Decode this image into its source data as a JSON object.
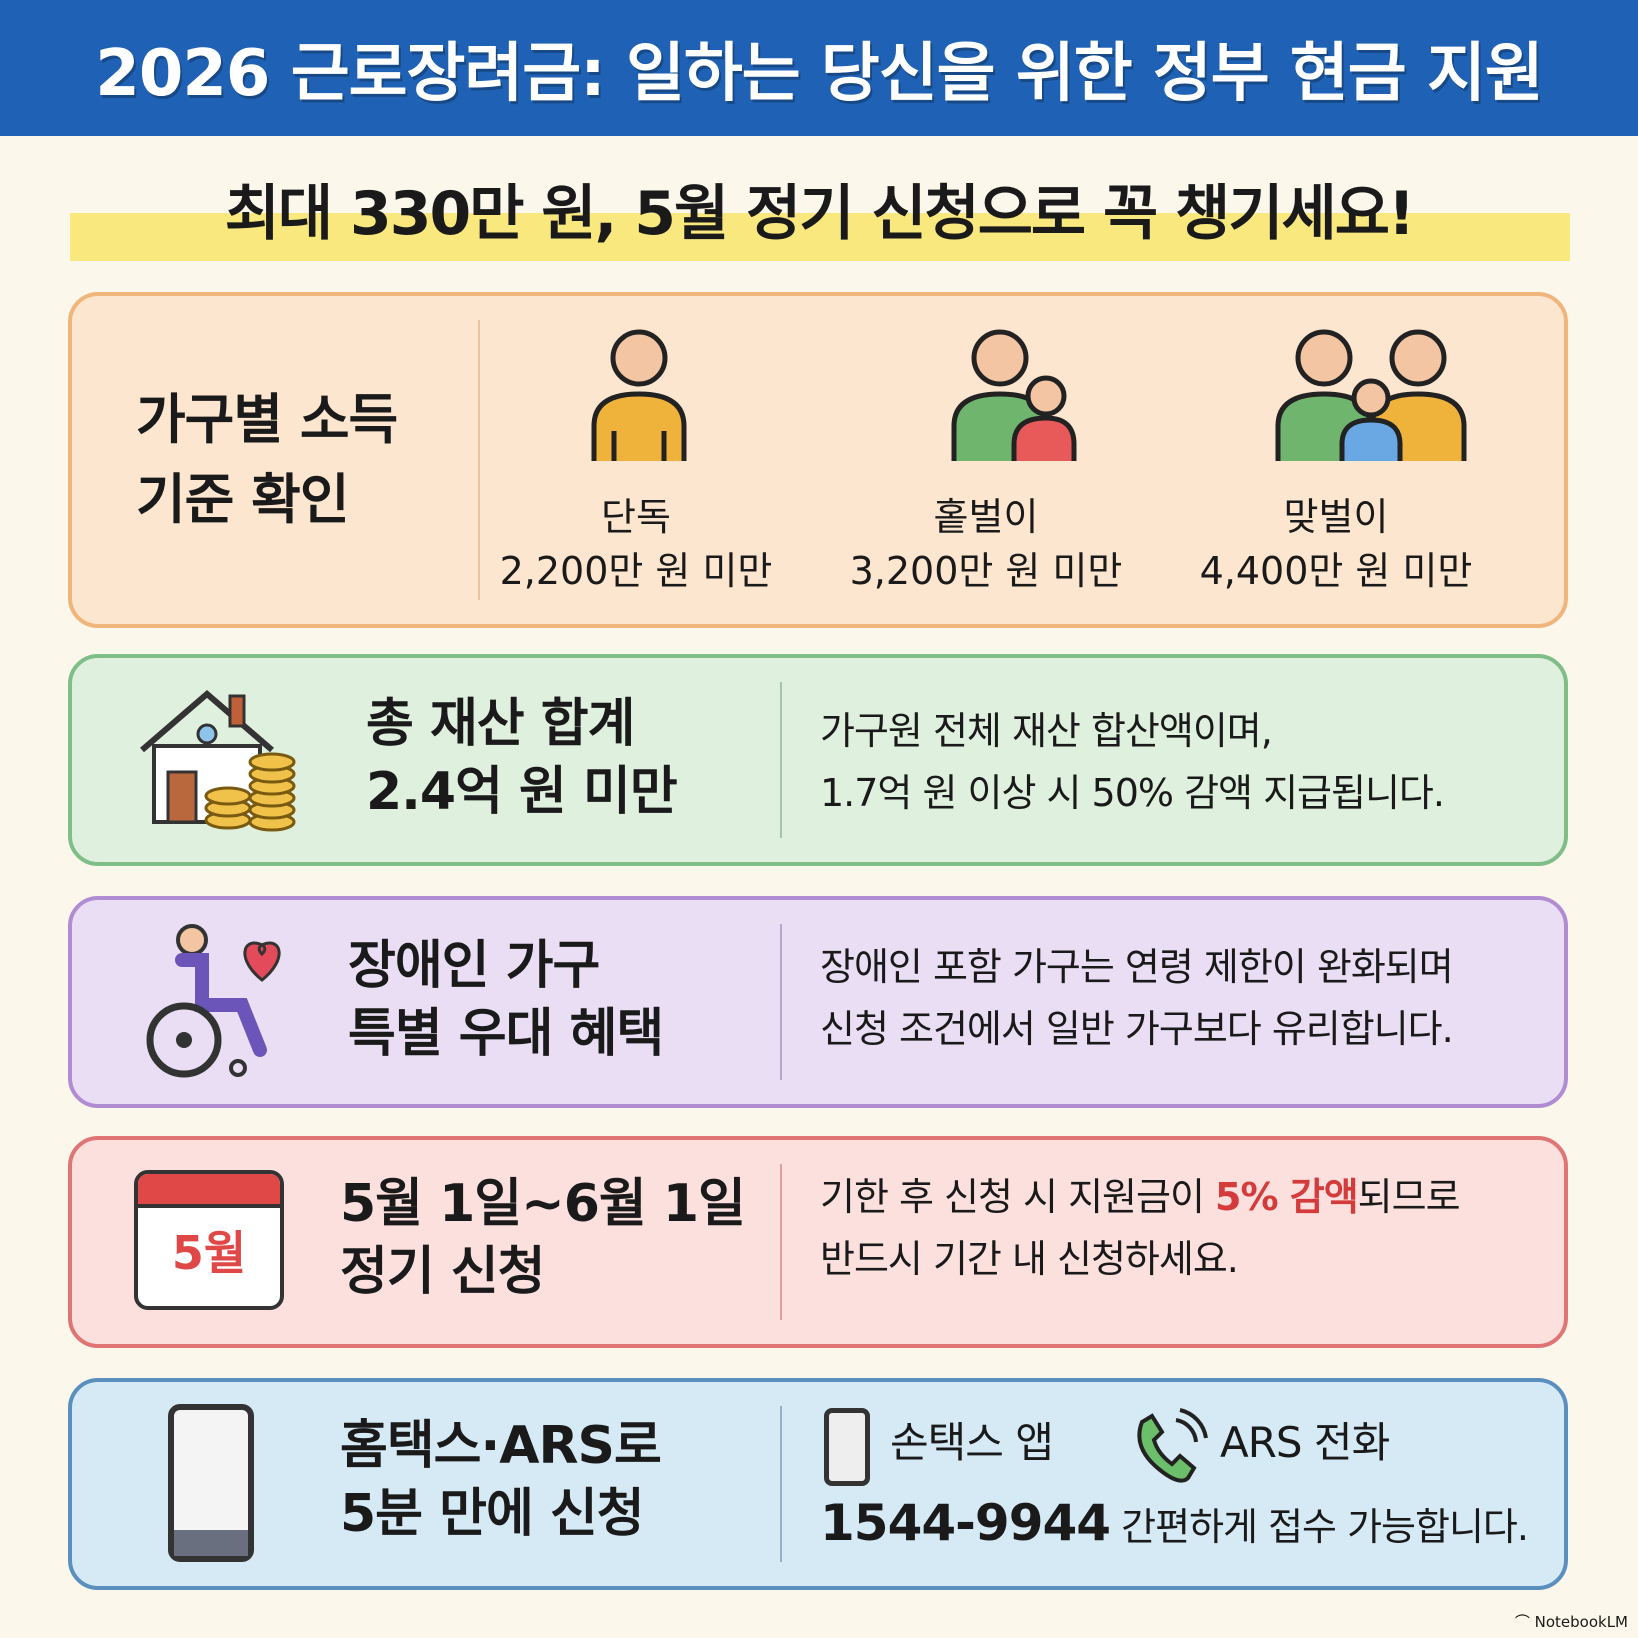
{
  "header": {
    "title": "2026 근로장려금: 일하는 당신을 위한 정부 현금 지원"
  },
  "subtitle": "최대 330만 원, 5월 정기 신청으로 꼭 챙기세요!",
  "income": {
    "title_1": "가구별 소득",
    "title_2": "기준 확인",
    "types": [
      {
        "label": "단독",
        "limit": "2,200만 원 미만",
        "icon": "single-person-icon"
      },
      {
        "label": "홑벌이",
        "limit": "3,200만 원 미만",
        "icon": "parent-child-icon"
      },
      {
        "label": "맞벌이",
        "limit": "4,400만 원 미만",
        "icon": "family-icon"
      }
    ]
  },
  "assets": {
    "title_1": "총 재산 합계",
    "title_2": "2.4억 원 미만",
    "desc_1": "가구원 전체 재산 합산액이며,",
    "desc_2": "1.7억 원 이상 시 50% 감액 지급됩니다.",
    "icon": "house-coins-icon"
  },
  "disabled": {
    "title_1": "장애인 가구",
    "title_2": "특별 우대 혜택",
    "desc_1": "장애인 포함 가구는 연령 제한이 완화되며",
    "desc_2": "신청 조건에서 일반 가구보다 유리합니다.",
    "icon": "wheelchair-heart-icon"
  },
  "period": {
    "title_1": "5월 1일~6월 1일",
    "title_2": "정기 신청",
    "desc_1a": "기한 후 신청 시 지원금이 ",
    "desc_1b": "5% 감액",
    "desc_1c": "되므로",
    "desc_2": "반드시 기간 내 신청하세요.",
    "calendar_label": "5월",
    "accent": "#d43b3b"
  },
  "apply": {
    "title_1": "홈택스·ARS로",
    "title_2": "5분 만에 신청",
    "app_label": "손택스 앱",
    "ars_label": "ARS 전화",
    "phone": "1544-9944",
    "phone_desc": "간편하게 접수 가능합니다."
  },
  "watermark": "NotebookLM",
  "colors": {
    "header": "#1f62b5",
    "highlight": "#f7e56b",
    "orange": "#fde6cf",
    "green": "#dff0de",
    "purple": "#e9def4",
    "pink": "#fbe0de",
    "blue": "#d6eaf6"
  }
}
